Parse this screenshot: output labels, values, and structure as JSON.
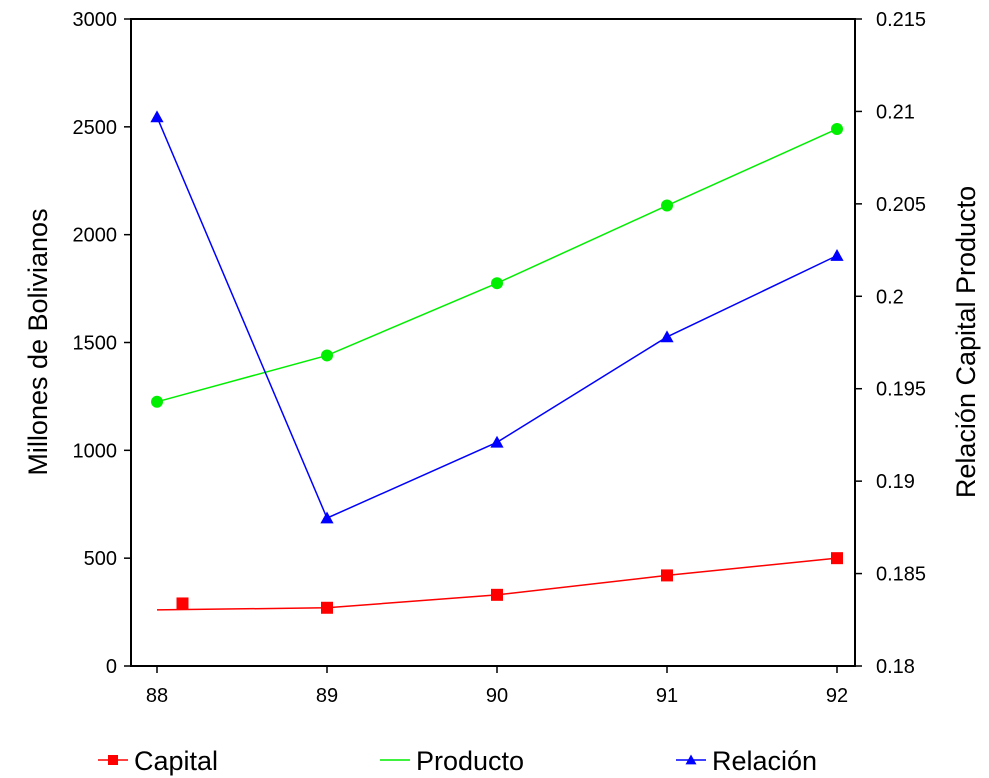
{
  "chart_data": {
    "type": "line",
    "categories": [
      "88",
      "89",
      "90",
      "91",
      "92"
    ],
    "ylabel": "Millones de Bolivianos",
    "ylabel_right": "Relación Capital Producto",
    "ylim": [
      0,
      3000
    ],
    "ylim_right": [
      0.18,
      0.215
    ],
    "yticks": [
      "0",
      "500",
      "1000",
      "1500",
      "2000",
      "2500",
      "3000"
    ],
    "yticks_right": [
      "0.18",
      "0.185",
      "0.19",
      "0.195",
      "0.2",
      "0.205",
      "0.21",
      "0.215"
    ],
    "grid": false,
    "legend_position": "bottom",
    "series": [
      {
        "name": "Capital",
        "axis": "left",
        "color": "#ff0000",
        "marker": "square",
        "line": [
          260,
          270,
          330,
          420,
          500
        ],
        "points": [
          [
            0.15,
            290
          ],
          [
            1,
            270
          ],
          [
            2,
            330
          ],
          [
            3,
            420
          ],
          [
            4,
            500
          ]
        ]
      },
      {
        "name": "Producto",
        "axis": "left",
        "color": "#00ee00",
        "marker": "circle",
        "line": [
          1225,
          1440,
          1775,
          2135,
          2490
        ],
        "points": [
          [
            0,
            1225
          ],
          [
            1,
            1440
          ],
          [
            2,
            1775
          ],
          [
            3,
            2135
          ],
          [
            4,
            2490
          ]
        ]
      },
      {
        "name": "Relación",
        "axis": "right",
        "color": "#0000ff",
        "marker": "triangle",
        "line": [
          0.2097,
          0.188,
          0.1921,
          0.1978,
          0.2022
        ],
        "points": [
          [
            0,
            0.2097
          ],
          [
            1,
            0.188
          ],
          [
            2,
            0.1921
          ],
          [
            3,
            0.1978
          ],
          [
            4,
            0.2022
          ]
        ]
      }
    ]
  }
}
